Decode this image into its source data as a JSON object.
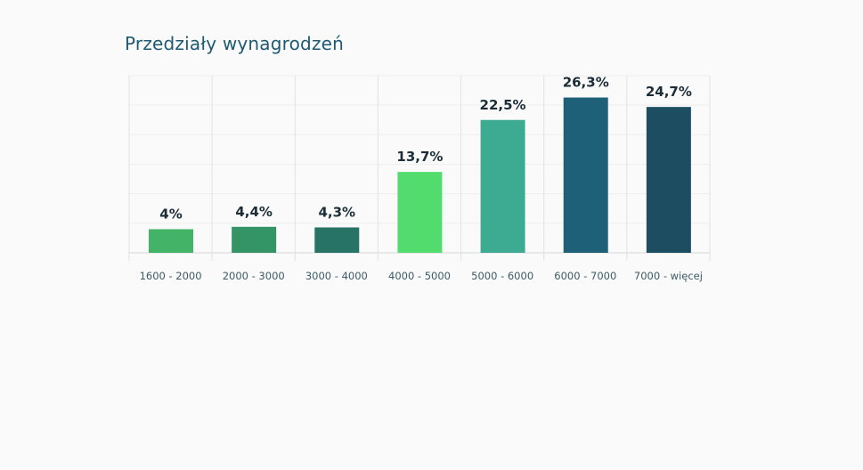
{
  "chart_data": {
    "type": "bar",
    "title": "Przedziały wynagrodzeń",
    "categories": [
      "1600 - 2000",
      "2000 - 3000",
      "3000 - 4000",
      "4000 - 5000",
      "5000 - 6000",
      "6000 - 7000",
      "7000 - więcej"
    ],
    "values": [
      4,
      4.4,
      4.3,
      13.7,
      22.5,
      26.3,
      24.7
    ],
    "value_labels": [
      "4%",
      "4,4%",
      "4,3%",
      "13,7%",
      "22,5%",
      "26,3%",
      "24,7%"
    ],
    "bar_colors": [
      "#43b368",
      "#359465",
      "#277365",
      "#52dc6d",
      "#3dab91",
      "#1f6079",
      "#1c4d60"
    ],
    "xlabel": "",
    "ylabel": "",
    "ylim": [
      0,
      30
    ],
    "grid": true,
    "legend": "none"
  }
}
